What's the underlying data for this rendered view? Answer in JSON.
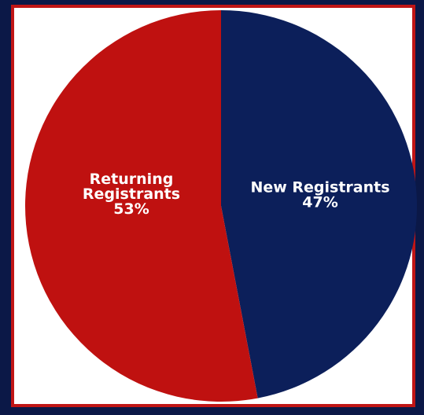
{
  "chart_data": {
    "type": "pie",
    "title": "",
    "slices": [
      {
        "name": "New Registrants",
        "value": 47,
        "label_lines": [
          "New Registrants",
          "47%"
        ],
        "color": "#0c1f5a"
      },
      {
        "name": "Returning Registrants",
        "value": 53,
        "label_lines": [
          "Returning",
          "Registrants",
          "53%"
        ],
        "color": "#bf1110"
      }
    ],
    "start_angle_deg": 0,
    "direction": "clockwise"
  },
  "colors": {
    "background": "#0b1847",
    "frame_border": "#c01515",
    "frame_fill": "#ffffff",
    "label_text": "#ffffff"
  }
}
